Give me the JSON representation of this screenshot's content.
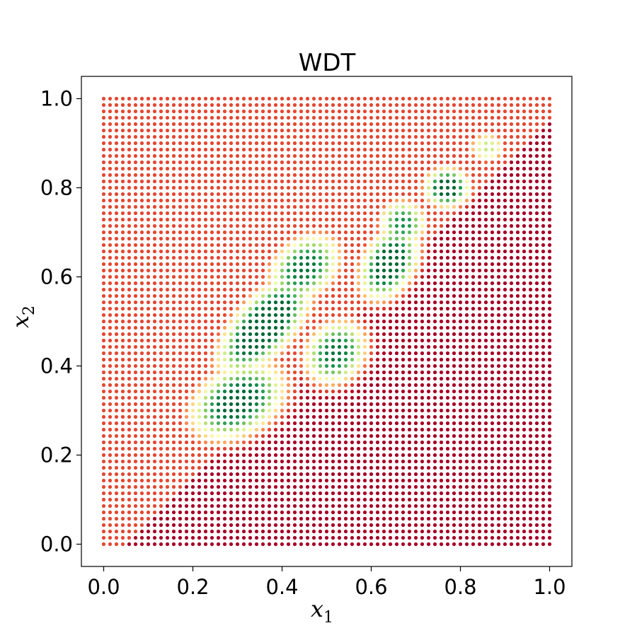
{
  "chart_data": {
    "type": "scatter",
    "title": "WDT",
    "xlabel": "x",
    "xlabel_sub": "1",
    "ylabel": "x",
    "ylabel_sub": "2",
    "xlim": [
      -0.05,
      1.05
    ],
    "ylim": [
      -0.05,
      1.05
    ],
    "xticks": [
      0.0,
      0.2,
      0.4,
      0.6,
      0.8,
      1.0
    ],
    "xtick_labels": [
      "0.0",
      "0.2",
      "0.4",
      "0.6",
      "0.8",
      "1.0"
    ],
    "yticks": [
      0.0,
      0.2,
      0.4,
      0.6,
      0.8,
      1.0
    ],
    "ytick_labels": [
      "0.0",
      "0.2",
      "0.4",
      "0.6",
      "0.8",
      "1.0"
    ],
    "grid": false,
    "colormap": "RdYlGn",
    "colormap_stops": [
      "#a50026",
      "#d73027",
      "#f46d43",
      "#fdae61",
      "#fee08b",
      "#ffffbf",
      "#d9ef8b",
      "#a6d96a",
      "#66bd63",
      "#1a9850",
      "#006837"
    ],
    "point_grid": {
      "x_start": 0.0,
      "x_end": 1.0,
      "y_start": 0.0,
      "y_end": 1.0,
      "count_per_axis": 71
    },
    "value_model": {
      "description_of_series": "grid of points colored by predicted value",
      "blobs": [
        {
          "x": 0.36,
          "y": 0.49,
          "sx": 0.11,
          "sy": 0.05,
          "angle_deg": 48,
          "weight": 1.0
        },
        {
          "x": 0.3,
          "y": 0.32,
          "sx": 0.09,
          "sy": 0.06,
          "angle_deg": 30,
          "weight": 0.9
        },
        {
          "x": 0.45,
          "y": 0.62,
          "sx": 0.07,
          "sy": 0.05,
          "angle_deg": 40,
          "weight": 0.85
        },
        {
          "x": 0.52,
          "y": 0.43,
          "sx": 0.06,
          "sy": 0.05,
          "angle_deg": 50,
          "weight": 0.85
        },
        {
          "x": 0.64,
          "y": 0.63,
          "sx": 0.07,
          "sy": 0.045,
          "angle_deg": 60,
          "weight": 0.95
        },
        {
          "x": 0.67,
          "y": 0.72,
          "sx": 0.04,
          "sy": 0.04,
          "angle_deg": 0,
          "weight": 0.8
        },
        {
          "x": 0.77,
          "y": 0.8,
          "sx": 0.04,
          "sy": 0.035,
          "angle_deg": 0,
          "weight": 0.95
        },
        {
          "x": 0.86,
          "y": 0.89,
          "sx": 0.03,
          "sy": 0.025,
          "angle_deg": 0,
          "weight": 0.55
        }
      ],
      "background_upper_left": 0.14,
      "background_lower_right": 0.0
    }
  }
}
